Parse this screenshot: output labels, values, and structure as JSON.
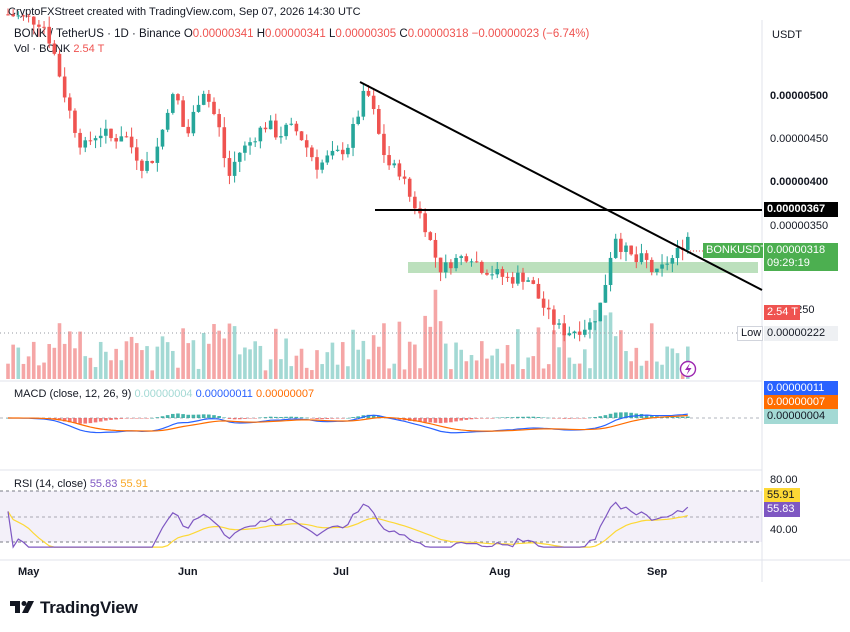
{
  "header": {
    "attribution": "CryptoFXStreet created with TradingView.com, Sep 07, 2026 14:30 UTC",
    "symbol": "BONK / TetherUS · 1D · Binance",
    "ohlc": [
      {
        "key": "O",
        "value": "0.00000341"
      },
      {
        "key": "H",
        "value": "0.00000341"
      },
      {
        "key": "L",
        "value": "0.00000305"
      },
      {
        "key": "C",
        "value": "0.00000318"
      }
    ],
    "change": "−0.00000023 (−6.74%)",
    "vol_label": "Vol · BONK",
    "vol_value": "2.54 T"
  },
  "axis": {
    "currency": "USDT",
    "price_ticks": [
      "0.00000500",
      "0.00000450",
      "0.00000400",
      "0.00000350"
    ],
    "partial_tick": "0250",
    "resistance_tag": "0.00000367",
    "symbol_tag": "BONKUSDT",
    "last_price_tag": "0.00000318",
    "countdown": "09:29:19",
    "vol_tag": "2.54 T",
    "low_label": "Low",
    "low_value": "0.00000222",
    "macd_tags": [
      "0.00000011",
      "0.00000007",
      "0.00000004"
    ],
    "rsi_ticks": [
      "80.00",
      "40.00"
    ],
    "rsi_tags": [
      "55.91",
      "55.83"
    ]
  },
  "macd": {
    "label": "MACD (close, 12, 26, 9)",
    "values": [
      "0.00000004",
      "0.00000011",
      "0.00000007"
    ]
  },
  "rsi": {
    "label": "RSI (14, close)",
    "values": [
      "55.83",
      "55.91"
    ]
  },
  "months": [
    "May",
    "Jun",
    "Jul",
    "Aug",
    "Sep"
  ],
  "logo_text": "TradingView",
  "colors": {
    "up": "#26a69a",
    "down": "#ef5350",
    "vol_up": "#a3d9d4",
    "vol_down": "#f5a6a6",
    "macd": "#2962ff",
    "signal": "#ff6d00",
    "rsi": "#7e57c2",
    "rsi_ma": "#fdd835",
    "support_zone": "#a5d6a7",
    "trendline": "#000000"
  },
  "chart_data": {
    "type": "candlestick",
    "title": "BONK / TetherUS · 1D · Binance",
    "candles": [
      {
        "o": 3.41e-06,
        "h": 3.41e-06,
        "l": 3.05e-06,
        "c": 3.18e-06
      }
    ],
    "resistance_level": 3.67e-06,
    "low": 2.22e-06,
    "last_close": 3.18e-06,
    "price_ticks": [
      5e-06,
      4.5e-06,
      4e-06,
      3.5e-06
    ],
    "rsi_levels": [
      80,
      40
    ],
    "macd": {
      "histogram": 4e-08,
      "macd": 1.1e-07,
      "signal": 7e-08
    },
    "rsi_values": {
      "rsi": 55.83,
      "ma": 55.91
    }
  }
}
